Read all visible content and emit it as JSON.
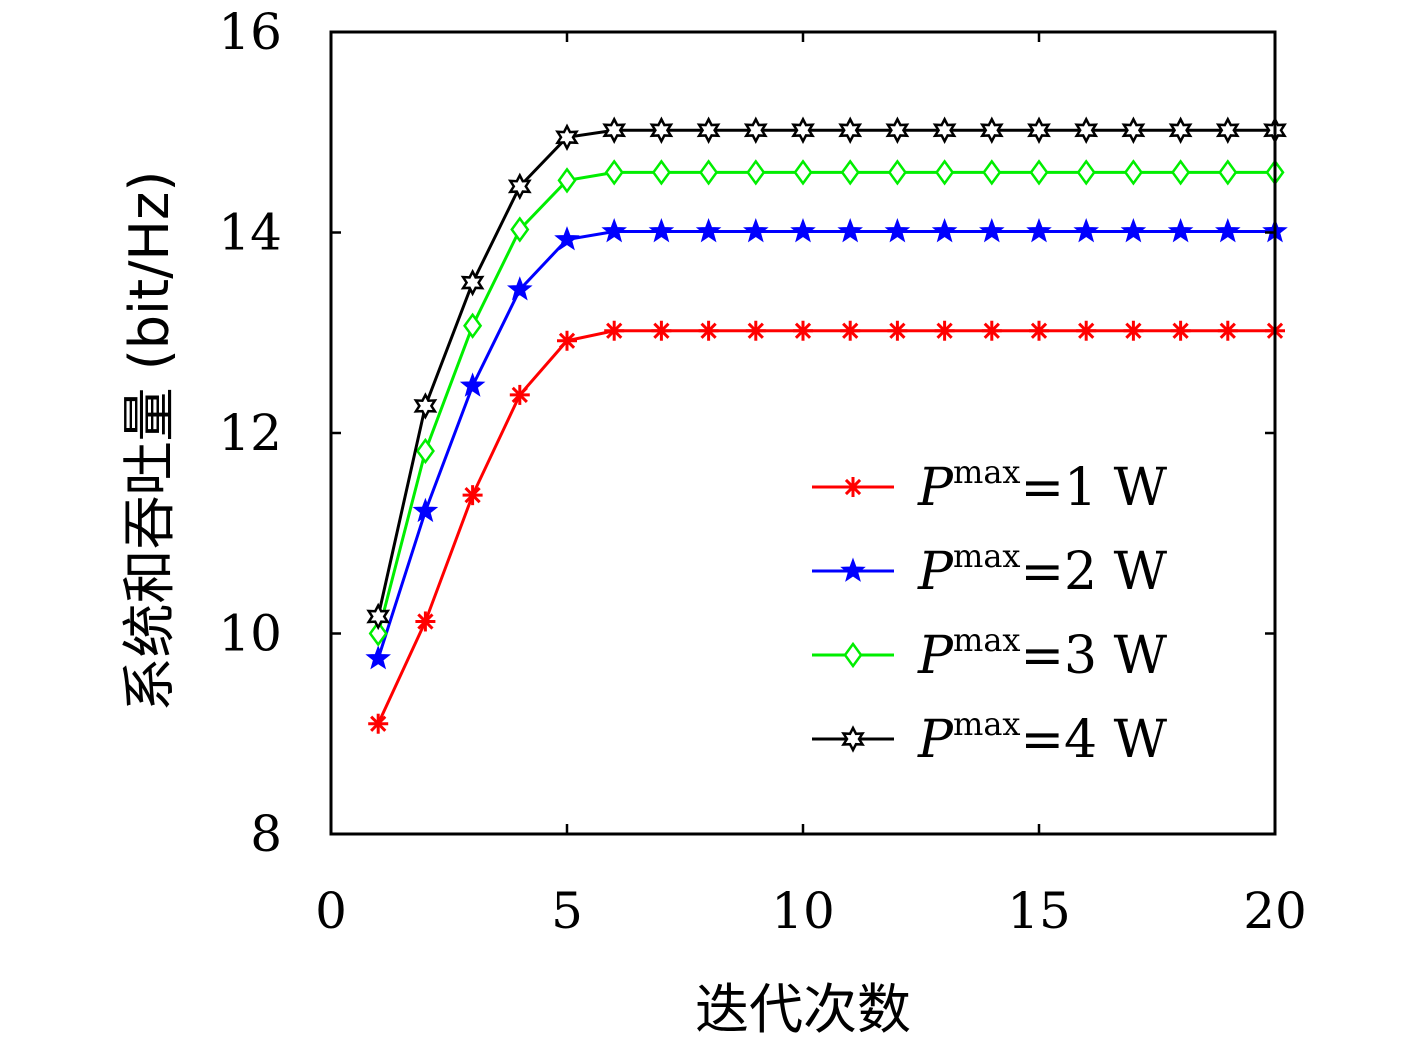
{
  "chart_data": {
    "type": "line",
    "title": "",
    "xlabel": "迭代次数",
    "ylabel": "系统和吞吐量 (bit/Hz)",
    "xlim": [
      0,
      20
    ],
    "ylim": [
      8,
      16
    ],
    "xticks": [
      0,
      5,
      10,
      15,
      20
    ],
    "yticks": [
      8,
      10,
      12,
      14,
      16
    ],
    "grid": false,
    "legend_position": "lower-right",
    "x": [
      1,
      2,
      3,
      4,
      5,
      6,
      7,
      8,
      9,
      10,
      11,
      12,
      13,
      14,
      15,
      16,
      17,
      18,
      19,
      20
    ],
    "series": [
      {
        "name": "P^max=1 W",
        "label_main": "P",
        "label_sup": "max",
        "label_rest": "=1 W",
        "color": "#ff0000",
        "marker": "asterisk",
        "values": [
          9.1,
          10.12,
          11.38,
          12.38,
          12.92,
          13.02,
          13.02,
          13.02,
          13.02,
          13.02,
          13.02,
          13.02,
          13.02,
          13.02,
          13.02,
          13.02,
          13.02,
          13.02,
          13.02,
          13.02
        ]
      },
      {
        "name": "P^max=2 W",
        "label_main": "P",
        "label_sup": "max",
        "label_rest": "=2 W",
        "color": "#0000ff",
        "marker": "star",
        "values": [
          9.75,
          11.22,
          12.47,
          13.43,
          13.93,
          14.01,
          14.01,
          14.01,
          14.01,
          14.01,
          14.01,
          14.01,
          14.01,
          14.01,
          14.01,
          14.01,
          14.01,
          14.01,
          14.01,
          14.01
        ]
      },
      {
        "name": "P^max=3 W",
        "label_main": "P",
        "label_sup": "max",
        "label_rest": "=3 W",
        "color": "#00ee00",
        "marker": "diamond",
        "values": [
          10.0,
          11.82,
          13.07,
          14.03,
          14.52,
          14.6,
          14.6,
          14.6,
          14.6,
          14.6,
          14.6,
          14.6,
          14.6,
          14.6,
          14.6,
          14.6,
          14.6,
          14.6,
          14.6,
          14.6
        ]
      },
      {
        "name": "P^max=4 W",
        "label_main": "P",
        "label_sup": "max",
        "label_rest": "=4 W",
        "color": "#000000",
        "marker": "hexagram",
        "values": [
          10.17,
          12.27,
          13.5,
          14.46,
          14.95,
          15.02,
          15.02,
          15.02,
          15.02,
          15.02,
          15.02,
          15.02,
          15.02,
          15.02,
          15.02,
          15.02,
          15.02,
          15.02,
          15.02,
          15.02
        ]
      }
    ]
  }
}
